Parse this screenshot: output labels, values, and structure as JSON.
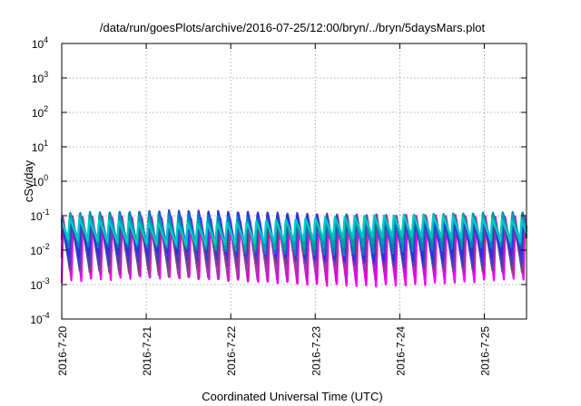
{
  "chart_data": {
    "type": "line",
    "title": "/data/run/goesPlots/archive/2016-07-25/12:00/bryn/../bryn/5daysMars.plot",
    "xlabel": "Coordinated Universal Time (UTC)",
    "ylabel": "cSv/day",
    "yscale": "log",
    "ylim": [
      0.0001,
      10000
    ],
    "xlim": [
      "2016-07-20 00:00",
      "2016-07-25 12:00"
    ],
    "x_ticks": [
      "2016-7-20",
      "2016-7-21",
      "2016-7-22",
      "2016-7-23",
      "2016-7-24",
      "2016-7-25"
    ],
    "y_ticks": [
      {
        "value": 0.0001,
        "base": "10",
        "exp": "-4"
      },
      {
        "value": 0.001,
        "base": "10",
        "exp": "-3"
      },
      {
        "value": 0.01,
        "base": "10",
        "exp": "-2"
      },
      {
        "value": 0.1,
        "base": "10",
        "exp": "-1"
      },
      {
        "value": 1,
        "base": "10",
        "exp": "0"
      },
      {
        "value": 10,
        "base": "10",
        "exp": "1"
      },
      {
        "value": 100,
        "base": "10",
        "exp": "2"
      },
      {
        "value": 1000,
        "base": "10",
        "exp": "3"
      },
      {
        "value": 10000,
        "base": "10",
        "exp": "4"
      }
    ],
    "grid": true,
    "legend": "none",
    "oscillation": {
      "cycles_per_day": 8.6,
      "amplitude_decades": 1.0
    },
    "series": [
      {
        "color": "#ff00ff",
        "peak": 0.07,
        "trough": 0.0011
      },
      {
        "color": "#e000e0",
        "peak": 0.075,
        "trough": 0.0014
      },
      {
        "color": "#c020c0",
        "peak": 0.08,
        "trough": 0.0018
      },
      {
        "color": "#a040a0",
        "peak": 0.085,
        "trough": 0.0023
      },
      {
        "color": "#7f3f7f",
        "peak": 0.09,
        "trough": 0.003
      },
      {
        "color": "#4040c0",
        "peak": 0.1,
        "trough": 0.004
      },
      {
        "color": "#3030e0",
        "peak": 0.11,
        "trough": 0.006
      },
      {
        "color": "#0080c0",
        "peak": 0.1,
        "trough": 0.009
      },
      {
        "color": "#00a0a0",
        "peak": 0.09,
        "trough": 0.013
      },
      {
        "color": "#00c8c8",
        "peak": 0.08,
        "trough": 0.018
      }
    ]
  }
}
